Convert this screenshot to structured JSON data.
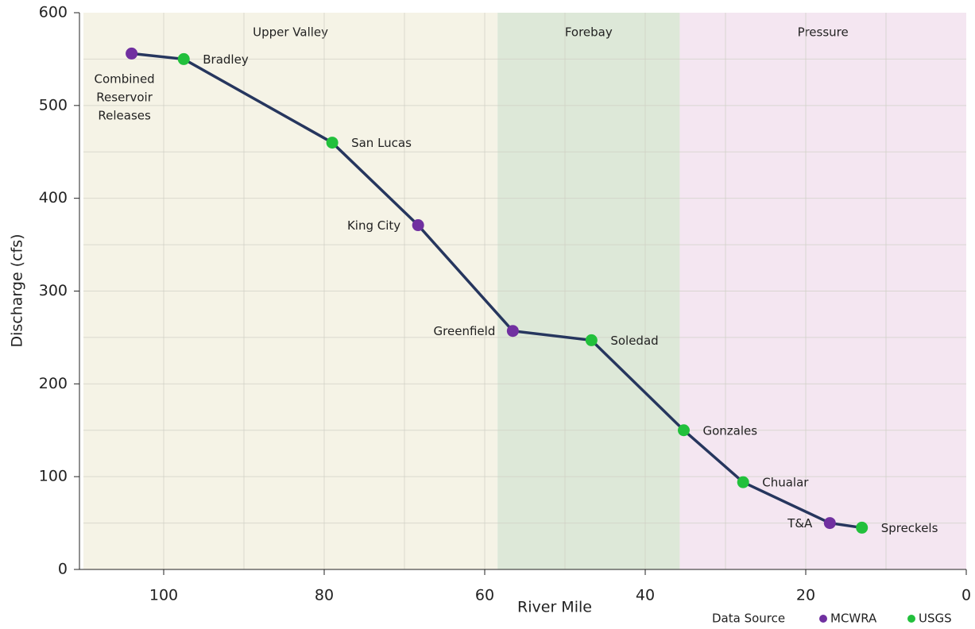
{
  "chart_data": {
    "type": "line",
    "xlabel": "River Mile",
    "ylabel": "Discharge (cfs)",
    "xlim": [
      110,
      0
    ],
    "ylim": [
      0,
      600
    ],
    "xticks": [
      100,
      80,
      60,
      40,
      20,
      0
    ],
    "yticks": [
      0,
      100,
      200,
      300,
      400,
      500,
      600
    ],
    "xgrid": [
      100,
      90,
      80,
      70,
      60,
      50,
      40,
      30,
      20,
      10
    ],
    "ygrid": [
      50,
      100,
      150,
      200,
      250,
      300,
      350,
      400,
      450,
      500,
      550
    ],
    "line_color": "#26365e",
    "regions": [
      {
        "name": "Upper Valley",
        "from": 110,
        "to": 58.4,
        "color": "#f5f3e6"
      },
      {
        "name": "Forebay",
        "from": 58.4,
        "to": 35.7,
        "color": "#dde8d8"
      },
      {
        "name": "Pressure",
        "from": 35.7,
        "to": 0,
        "color": "#f4e6f1"
      }
    ],
    "x": [
      104,
      97.5,
      79,
      68.3,
      56.5,
      46.7,
      35.2,
      27.8,
      17,
      13
    ],
    "values": [
      556,
      550,
      460,
      371,
      257,
      247,
      150,
      94,
      50,
      45
    ],
    "point_labels": [
      "Combined Reservoir Releases",
      "Bradley",
      "San Lucas",
      "King City",
      "Greenfield",
      "Soledad",
      "Gonzales",
      "Chualar",
      "T&A",
      "Spreckels"
    ],
    "point_sources": [
      "MCWRA",
      "USGS",
      "USGS",
      "MCWRA",
      "MCWRA",
      "USGS",
      "USGS",
      "USGS",
      "MCWRA",
      "USGS"
    ],
    "legend": {
      "title": "Data Source",
      "items": [
        {
          "name": "MCWRA",
          "color": "#7030a0"
        },
        {
          "name": "USGS",
          "color": "#22c03c"
        }
      ]
    }
  }
}
